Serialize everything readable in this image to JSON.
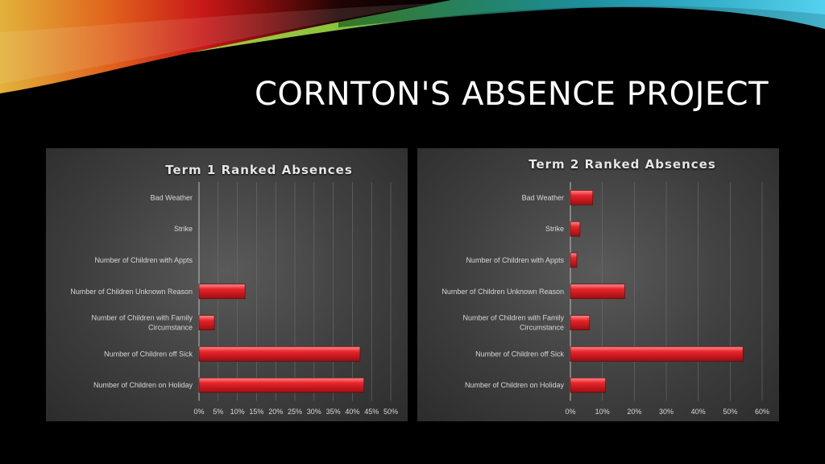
{
  "slide": {
    "title": "CORNTON'S ABSENCE PROJECT"
  },
  "chart_data": [
    {
      "type": "bar",
      "orientation": "horizontal",
      "title": "Term 1 Ranked Absences",
      "categories": [
        "Bad Weather",
        "Strike",
        "Number of Children with Appts",
        "Number of Children Unknown Reason",
        "Number of Children with Family Circumstance",
        "Number of Children off Sick",
        "Number of Children on Holiday"
      ],
      "category_lines": [
        [
          "Bad Weather"
        ],
        [
          "Strike"
        ],
        [
          "Number of Children with Appts"
        ],
        [
          "Number of Children Unknown Reason"
        ],
        [
          "Number of Children with Family",
          "Circumstance"
        ],
        [
          "Number of Children off Sick"
        ],
        [
          "Number of Children on Holiday"
        ]
      ],
      "values": [
        0,
        0,
        0,
        12,
        4,
        42,
        43
      ],
      "xlim": [
        0,
        50
      ],
      "tick_labels": [
        "0%",
        "5%",
        "10%",
        "15%",
        "20%",
        "25%",
        "30%",
        "35%",
        "40%",
        "45%",
        "50%"
      ],
      "grid": true,
      "bar_color": "#e8232a"
    },
    {
      "type": "bar",
      "orientation": "horizontal",
      "title": "Term 2 Ranked Absences",
      "categories": [
        "Bad Weather",
        "Strike",
        "Number of Children with Appts",
        "Number of Children Unknown Reason",
        "Number of Children with Family Circumstance",
        "Number of Children off Sick",
        "Number of Children on Holiday"
      ],
      "category_lines": [
        [
          "Bad Weather"
        ],
        [
          "Strike"
        ],
        [
          "Number of Children with Appts"
        ],
        [
          "Number of Children Unknown Reason"
        ],
        [
          "Number of Children with Family",
          "Circumstance"
        ],
        [
          "Number of Children off Sick"
        ],
        [
          "Number of Children on Holiday"
        ]
      ],
      "values": [
        7,
        3,
        2,
        17,
        6,
        54,
        11
      ],
      "xlim": [
        0,
        60
      ],
      "tick_labels": [
        "0%",
        "10%",
        "20%",
        "30%",
        "40%",
        "50%",
        "60%"
      ],
      "grid": true,
      "bar_color": "#e8232a"
    }
  ]
}
